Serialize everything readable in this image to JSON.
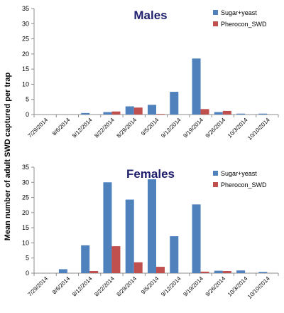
{
  "ylabel": "Mean number of adult SWD captured per trap",
  "colors": {
    "sugar": "#4f81bd",
    "pherocon": "#c0504d",
    "axis": "#8c8c8c"
  },
  "chart_data": [
    {
      "type": "bar",
      "title": "Males",
      "categories": [
        "7/29/2014",
        "8/6/2014",
        "8/12/2014",
        "8/22/2014",
        "8/29/2014",
        "9/5/2014",
        "9/12/2014",
        "9/19/2014",
        "9/26/2014",
        "10/3/2014",
        "10/10/2014"
      ],
      "series": [
        {
          "name": "Sugar+yeast",
          "values": [
            0,
            0,
            0.5,
            0.8,
            2.7,
            3.2,
            7.5,
            18.5,
            0.8,
            0.3,
            0.3
          ]
        },
        {
          "name": "Pherocon_SWD",
          "values": [
            0,
            0,
            0,
            1.0,
            2.3,
            0.2,
            0,
            1.8,
            1.2,
            0,
            0
          ]
        }
      ],
      "ylim": [
        0,
        35
      ],
      "yticks": [
        0,
        5,
        10,
        15,
        20,
        25,
        30,
        35
      ],
      "legend": "top-right",
      "grid": false
    },
    {
      "type": "bar",
      "title": "Females",
      "categories": [
        "7/29/2014",
        "8/6/2014",
        "8/12/2014",
        "8/22/2014",
        "8/29/2014",
        "9/5/2014",
        "9/12/2014",
        "9/19/2014",
        "9/26/2014",
        "10/3/2014",
        "10/10/2014"
      ],
      "series": [
        {
          "name": "Sugar+yeast",
          "values": [
            0,
            1.3,
            9.2,
            30.0,
            24.3,
            31.0,
            12.2,
            22.7,
            0.8,
            0.9,
            0.4
          ]
        },
        {
          "name": "Pherocon_SWD",
          "values": [
            0,
            0,
            0.7,
            8.9,
            3.6,
            2.1,
            0,
            0.5,
            0.7,
            0,
            0
          ]
        }
      ],
      "ylim": [
        0,
        35
      ],
      "yticks": [
        0,
        5,
        10,
        15,
        20,
        25,
        30,
        35
      ],
      "legend": "top-right",
      "grid": false
    }
  ]
}
